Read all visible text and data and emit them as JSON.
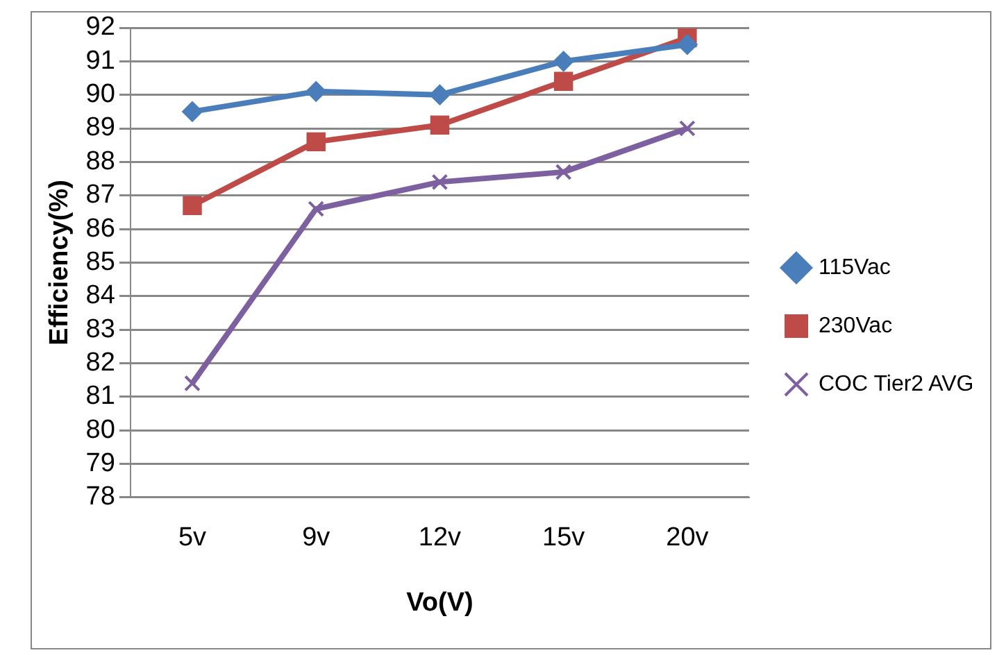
{
  "chart_data": {
    "type": "line",
    "xlabel": "Vo(V)",
    "ylabel": "Efficiency(%)",
    "categories": [
      "5v",
      "9v",
      "12v",
      "15v",
      "20v"
    ],
    "series": [
      {
        "name": "115Vac",
        "color": "#4a7ebb",
        "marker": "diamond",
        "values": [
          89.5,
          90.1,
          90.0,
          91.0,
          91.5
        ]
      },
      {
        "name": "230Vac",
        "color": "#be4b48",
        "marker": "square",
        "values": [
          86.7,
          88.6,
          89.1,
          90.4,
          91.7
        ]
      },
      {
        "name": "COC Tier2 AVG",
        "color": "#7d60a0",
        "marker": "cross",
        "values": [
          81.4,
          86.6,
          87.4,
          87.7,
          89.0
        ]
      }
    ],
    "ylim": [
      78,
      92
    ],
    "yticks": [
      78,
      79,
      80,
      81,
      82,
      83,
      84,
      85,
      86,
      87,
      88,
      89,
      90,
      91,
      92
    ],
    "grid": "y",
    "legend": "right",
    "line_style": "solid"
  }
}
